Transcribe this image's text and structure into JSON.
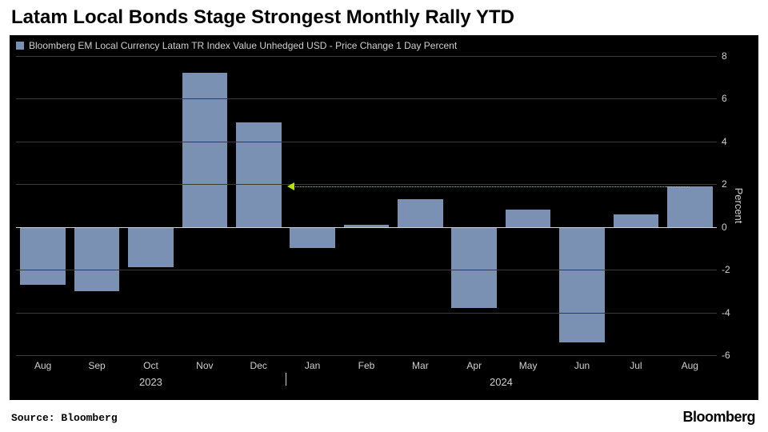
{
  "title": "Latam Local Bonds Stage Strongest Monthly Rally YTD",
  "legend_label": "Bloomberg EM Local Currency Latam TR Index Value Unhedged USD - Price Change 1 Day Percent",
  "source": "Source: Bloomberg",
  "brand": "Bloomberg",
  "chart": {
    "type": "bar",
    "background_color": "#000000",
    "bar_color": "#7a91b4",
    "grid_color": "#3a3a3a",
    "zero_color": "#d0d0d0",
    "tick_color": "#d0d0d0",
    "legend_swatch_color": "#7a91b4",
    "arrow_color": "#b6e300",
    "y_axis_label": "Percent",
    "y_min": -6,
    "y_max": 8,
    "y_ticks": [
      -6,
      -4,
      -2,
      0,
      2,
      4,
      6,
      8
    ],
    "bar_width_ratio": 0.84,
    "categories": [
      "Aug",
      "Sep",
      "Oct",
      "Nov",
      "Dec",
      "Jan",
      "Feb",
      "Mar",
      "Apr",
      "May",
      "Jun",
      "Jul",
      "Aug"
    ],
    "values": [
      -2.7,
      -3.0,
      -1.9,
      7.2,
      4.9,
      -1.0,
      0.1,
      1.3,
      -3.8,
      0.8,
      -5.4,
      0.6,
      1.9
    ],
    "year_groups": [
      {
        "label": "2023",
        "start_index": 0,
        "end_index": 4
      },
      {
        "label": "2024",
        "start_index": 5,
        "end_index": 12
      }
    ],
    "arrow": {
      "from_index": 12,
      "to_index": 5,
      "value": 1.9
    }
  }
}
